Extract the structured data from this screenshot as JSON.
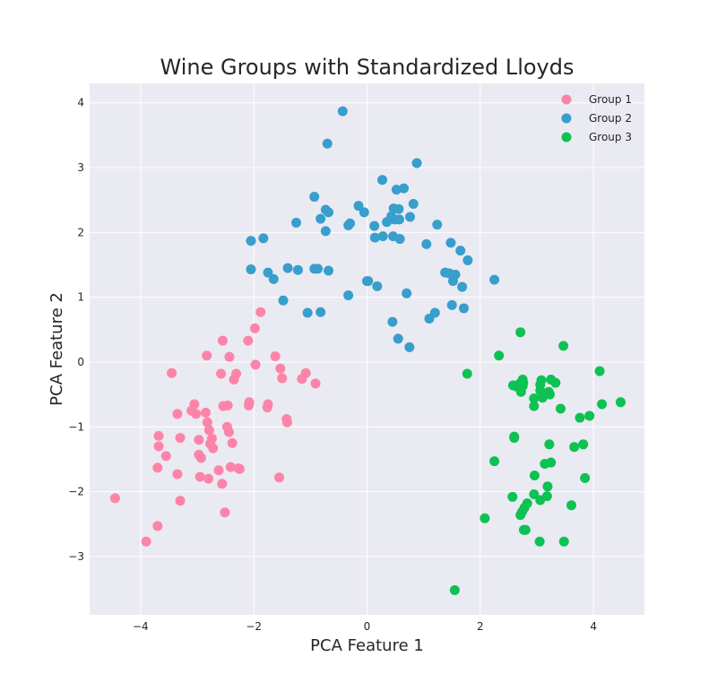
{
  "chart_data": {
    "type": "scatter",
    "title": "Wine Groups with Standardized Lloyds",
    "xlabel": "PCA Feature 1",
    "ylabel": "PCA Feature 2",
    "xlim": [
      -4.9,
      4.9
    ],
    "ylim": [
      -3.9,
      4.3
    ],
    "xticks": [
      -4,
      -2,
      0,
      2,
      4
    ],
    "yticks": [
      -3,
      -2,
      -1,
      0,
      1,
      2,
      3,
      4
    ],
    "xtick_labels": [
      "−4",
      "−2",
      "0",
      "2",
      "4"
    ],
    "ytick_labels": [
      "−3",
      "−2",
      "−1",
      "0",
      "1",
      "2",
      "3",
      "4"
    ],
    "grid": true,
    "legend_position": "top-right",
    "series": [
      {
        "name": "Group 1",
        "color": "#fc84a8",
        "points": [
          [
            -4.45,
            -2.1
          ],
          [
            -3.9,
            -2.77
          ],
          [
            -3.7,
            -2.53
          ],
          [
            -3.7,
            -1.63
          ],
          [
            -3.68,
            -1.3
          ],
          [
            -3.68,
            -1.14
          ],
          [
            -3.55,
            -1.45
          ],
          [
            -3.45,
            -0.17
          ],
          [
            -3.35,
            -1.73
          ],
          [
            -3.35,
            -0.8
          ],
          [
            -3.3,
            -1.17
          ],
          [
            -3.3,
            -2.14
          ],
          [
            -3.1,
            -0.75
          ],
          [
            -3.05,
            -0.65
          ],
          [
            -3.02,
            -0.8
          ],
          [
            -2.97,
            -1.2
          ],
          [
            -2.97,
            -1.43
          ],
          [
            -2.95,
            -1.77
          ],
          [
            -2.93,
            -1.48
          ],
          [
            -2.85,
            -0.78
          ],
          [
            -2.83,
            0.1
          ],
          [
            -2.82,
            -0.93
          ],
          [
            -2.8,
            -1.8
          ],
          [
            -2.79,
            -1.05
          ],
          [
            -2.77,
            -1.26
          ],
          [
            -2.74,
            -1.18
          ],
          [
            -2.72,
            -1.33
          ],
          [
            -2.62,
            -1.67
          ],
          [
            -2.58,
            -0.18
          ],
          [
            -2.56,
            -1.88
          ],
          [
            -2.55,
            0.33
          ],
          [
            -2.54,
            -0.68
          ],
          [
            -2.51,
            -2.32
          ],
          [
            -2.47,
            -1.0
          ],
          [
            -2.46,
            -0.67
          ],
          [
            -2.44,
            -1.08
          ],
          [
            -2.43,
            0.08
          ],
          [
            -2.41,
            -1.62
          ],
          [
            -2.38,
            -1.25
          ],
          [
            -2.35,
            -0.27
          ],
          [
            -2.31,
            -0.18
          ],
          [
            -2.27,
            -1.64
          ],
          [
            -2.25,
            -1.65
          ],
          [
            -2.1,
            0.33
          ],
          [
            -2.08,
            -0.62
          ],
          [
            -2.09,
            -0.67
          ],
          [
            -1.98,
            0.52
          ],
          [
            -1.97,
            -0.04
          ],
          [
            -1.88,
            0.77
          ],
          [
            -1.76,
            -0.7
          ],
          [
            -1.75,
            -0.65
          ],
          [
            -1.62,
            0.09
          ],
          [
            -1.55,
            -1.78
          ],
          [
            -1.53,
            -0.1
          ],
          [
            -1.5,
            -0.25
          ],
          [
            -1.42,
            -0.88
          ],
          [
            -1.41,
            -0.93
          ],
          [
            -1.15,
            -0.26
          ],
          [
            -1.08,
            -0.17
          ],
          [
            -0.91,
            -0.33
          ]
        ]
      },
      {
        "name": "Group 2",
        "color": "#389ecc",
        "points": [
          [
            -2.05,
            1.87
          ],
          [
            -2.05,
            1.43
          ],
          [
            -1.83,
            1.91
          ],
          [
            -1.75,
            1.38
          ],
          [
            -1.65,
            1.28
          ],
          [
            -1.48,
            0.95
          ],
          [
            -1.4,
            1.45
          ],
          [
            -1.25,
            2.15
          ],
          [
            -1.22,
            1.42
          ],
          [
            -1.05,
            0.76
          ],
          [
            -0.93,
            1.44
          ],
          [
            -0.93,
            2.55
          ],
          [
            -0.87,
            1.44
          ],
          [
            -0.82,
            2.21
          ],
          [
            -0.82,
            0.77
          ],
          [
            -0.73,
            2.02
          ],
          [
            -0.73,
            2.35
          ],
          [
            -0.7,
            3.37
          ],
          [
            -0.68,
            1.41
          ],
          [
            -0.68,
            2.31
          ],
          [
            -0.43,
            3.87
          ],
          [
            -0.33,
            1.03
          ],
          [
            -0.33,
            2.11
          ],
          [
            -0.3,
            2.14
          ],
          [
            -0.15,
            2.41
          ],
          [
            -0.05,
            2.31
          ],
          [
            0.0,
            1.25
          ],
          [
            0.02,
            1.25
          ],
          [
            0.13,
            2.1
          ],
          [
            0.14,
            1.92
          ],
          [
            0.18,
            1.17
          ],
          [
            0.27,
            2.81
          ],
          [
            0.28,
            1.94
          ],
          [
            0.35,
            2.16
          ],
          [
            0.43,
            2.25
          ],
          [
            0.45,
            0.62
          ],
          [
            0.46,
            1.94
          ],
          [
            0.47,
            2.37
          ],
          [
            0.49,
            2.2
          ],
          [
            0.52,
            2.66
          ],
          [
            0.55,
            0.36
          ],
          [
            0.56,
            2.36
          ],
          [
            0.57,
            2.2
          ],
          [
            0.58,
            1.9
          ],
          [
            0.65,
            2.68
          ],
          [
            0.7,
            1.06
          ],
          [
            0.75,
            0.23
          ],
          [
            0.76,
            2.24
          ],
          [
            0.82,
            2.44
          ],
          [
            0.88,
            3.07
          ],
          [
            1.05,
            1.82
          ],
          [
            1.1,
            0.67
          ],
          [
            1.2,
            0.76
          ],
          [
            1.24,
            2.12
          ],
          [
            1.38,
            1.38
          ],
          [
            1.45,
            1.37
          ],
          [
            1.48,
            1.84
          ],
          [
            1.5,
            0.88
          ],
          [
            1.52,
            1.25
          ],
          [
            1.56,
            1.35
          ],
          [
            1.65,
            1.72
          ],
          [
            1.68,
            1.16
          ],
          [
            1.71,
            0.83
          ],
          [
            1.78,
            1.57
          ],
          [
            2.25,
            1.27
          ]
        ]
      },
      {
        "name": "Group 3",
        "color": "#0dc252",
        "points": [
          [
            1.55,
            -3.52
          ],
          [
            1.77,
            -0.18
          ],
          [
            2.08,
            -2.41
          ],
          [
            2.25,
            -1.53
          ],
          [
            2.33,
            0.1
          ],
          [
            2.57,
            -2.08
          ],
          [
            2.58,
            -0.36
          ],
          [
            2.6,
            -1.15
          ],
          [
            2.6,
            -1.17
          ],
          [
            2.65,
            -0.38
          ],
          [
            2.7,
            -0.33
          ],
          [
            2.71,
            0.46
          ],
          [
            2.71,
            -2.36
          ],
          [
            2.72,
            -0.46
          ],
          [
            2.74,
            -2.31
          ],
          [
            2.75,
            -0.37
          ],
          [
            2.75,
            -0.27
          ],
          [
            2.76,
            -0.32
          ],
          [
            2.77,
            -2.59
          ],
          [
            2.78,
            -2.25
          ],
          [
            2.8,
            -2.59
          ],
          [
            2.83,
            -2.18
          ],
          [
            2.95,
            -2.04
          ],
          [
            2.95,
            -0.56
          ],
          [
            2.95,
            -0.68
          ],
          [
            2.96,
            -1.75
          ],
          [
            3.05,
            -2.77
          ],
          [
            3.06,
            -0.44
          ],
          [
            3.06,
            -0.35
          ],
          [
            3.06,
            -2.13
          ],
          [
            3.08,
            -0.28
          ],
          [
            3.1,
            -0.55
          ],
          [
            3.14,
            -1.57
          ],
          [
            3.18,
            -2.07
          ],
          [
            3.19,
            -1.92
          ],
          [
            3.21,
            -0.46
          ],
          [
            3.22,
            -1.27
          ],
          [
            3.23,
            -0.5
          ],
          [
            3.25,
            -1.55
          ],
          [
            3.25,
            -0.27
          ],
          [
            3.33,
            -0.32
          ],
          [
            3.42,
            -0.72
          ],
          [
            3.47,
            0.25
          ],
          [
            3.48,
            -2.77
          ],
          [
            3.61,
            -2.21
          ],
          [
            3.66,
            -1.31
          ],
          [
            3.76,
            -0.86
          ],
          [
            3.82,
            -1.27
          ],
          [
            3.85,
            -1.79
          ],
          [
            3.93,
            -0.83
          ],
          [
            4.11,
            -0.14
          ],
          [
            4.15,
            -0.65
          ],
          [
            4.48,
            -0.62
          ]
        ]
      }
    ]
  }
}
